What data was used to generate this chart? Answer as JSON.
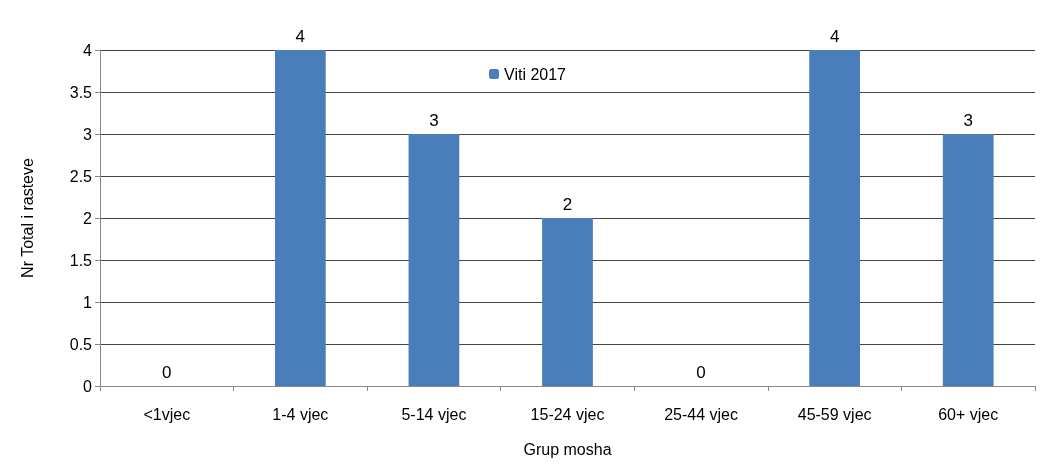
{
  "chart_data": {
    "type": "bar",
    "xlabel": "Grup mosha",
    "ylabel": "Nr Total i rasteve",
    "categories": [
      "<1vjec",
      "1-4 vjec",
      "5-14 vjec",
      "15-24 vjec",
      "25-44 vjec",
      "45-59 vjec",
      "60+ vjec"
    ],
    "series": [
      {
        "name": "Viti 2017",
        "color": "#4a7ebb",
        "values": [
          0,
          4,
          3,
          2,
          0,
          4,
          3
        ]
      }
    ],
    "ylim": [
      0,
      4
    ],
    "yticks": [
      0,
      0.5,
      1,
      1.5,
      2,
      2.5,
      3,
      3.5,
      4
    ],
    "grid": "y",
    "legend": "top",
    "data_labels": true
  }
}
